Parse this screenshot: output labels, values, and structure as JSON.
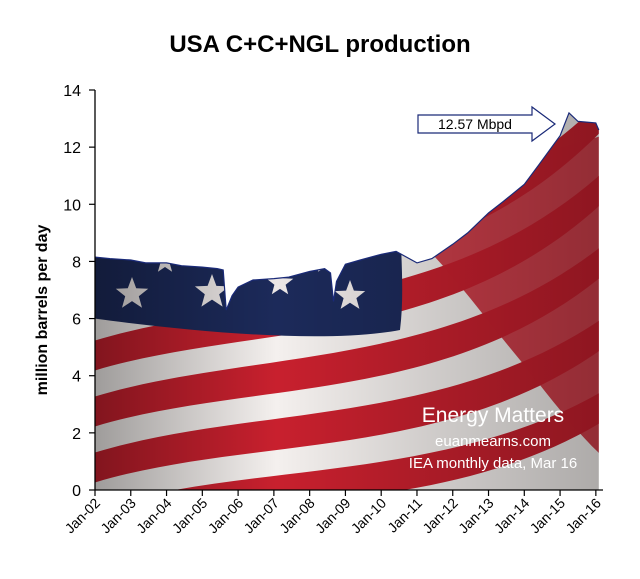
{
  "chart_data": {
    "type": "area",
    "title": "USA C+C+NGL production",
    "ylabel": "million barrels per day",
    "xlabel": "",
    "ylim": [
      0,
      14
    ],
    "yticks": [
      0,
      2,
      4,
      6,
      8,
      10,
      12,
      14
    ],
    "xticks": [
      "Jan-02",
      "Jan-03",
      "Jan-04",
      "Jan-05",
      "Jan-06",
      "Jan-07",
      "Jan-08",
      "Jan-09",
      "Jan-10",
      "Jan-11",
      "Jan-12",
      "Jan-13",
      "Jan-14",
      "Jan-15",
      "Jan-16"
    ],
    "grid": false,
    "series": [
      {
        "x": [
          "2002-01",
          "2002-06",
          "2003-01",
          "2003-06",
          "2004-01",
          "2004-06",
          "2005-01",
          "2005-06",
          "2005-08",
          "2005-09",
          "2005-11",
          "2006-01",
          "2006-06",
          "2007-01",
          "2007-06",
          "2008-01",
          "2008-06",
          "2008-08",
          "2008-09",
          "2008-10",
          "2009-01",
          "2009-06",
          "2010-01",
          "2010-06",
          "2011-01",
          "2011-06",
          "2012-01",
          "2012-06",
          "2013-01",
          "2013-06",
          "2014-01",
          "2014-06",
          "2015-01",
          "2015-04",
          "2015-07",
          "2016-01",
          "2016-02"
        ],
        "values": [
          8.15,
          8.1,
          8.05,
          7.95,
          7.95,
          7.85,
          7.8,
          7.75,
          7.7,
          6.3,
          6.8,
          7.1,
          7.35,
          7.4,
          7.45,
          7.65,
          7.75,
          7.6,
          6.6,
          7.3,
          7.9,
          8.05,
          8.25,
          8.35,
          7.95,
          8.1,
          8.6,
          9.0,
          9.7,
          10.1,
          10.7,
          11.4,
          12.4,
          13.2,
          12.9,
          12.85,
          12.6
        ]
      }
    ],
    "annotations": {
      "callout": "12.57 Mbpd",
      "brand": "Energy Matters",
      "site": "euanmearns.com",
      "source": "IEA monthly data, Mar 16"
    }
  }
}
